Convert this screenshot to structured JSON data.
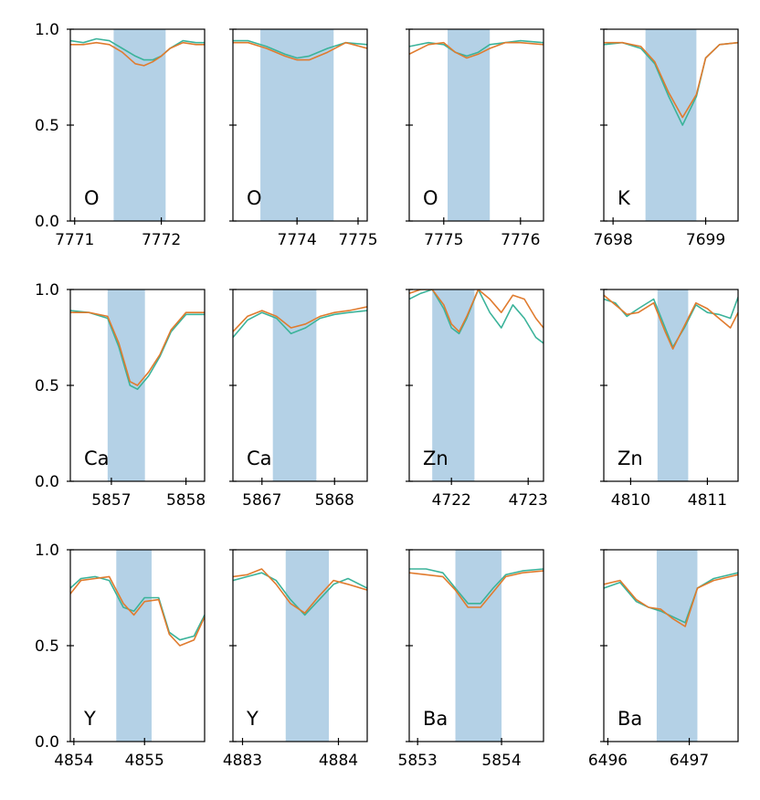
{
  "chart_data": {
    "type": "line",
    "layout": "3x4 grid of spectral line panels",
    "series_colors": [
      "#3bb39a",
      "#e07b2e"
    ],
    "band_color": "#b4d1e6",
    "ylim": [
      0,
      1
    ],
    "yticks": [
      "0.0",
      "0.5",
      "1.0"
    ],
    "panels": [
      {
        "element": "O",
        "xlim": [
          7770.95,
          7772.5
        ],
        "xticks": [
          7771,
          7772
        ],
        "band": [
          7771.45,
          7772.05
        ],
        "series": [
          {
            "x": [
              7770.95,
              7771.1,
              7771.25,
              7771.4,
              7771.55,
              7771.7,
              7771.8,
              7771.9,
              7772.0,
              7772.1,
              7772.25,
              7772.4,
              7772.5
            ],
            "values": [
              0.94,
              0.93,
              0.95,
              0.94,
              0.9,
              0.86,
              0.84,
              0.84,
              0.86,
              0.9,
              0.94,
              0.93,
              0.93
            ]
          },
          {
            "x": [
              7770.95,
              7771.1,
              7771.25,
              7771.4,
              7771.55,
              7771.7,
              7771.8,
              7771.9,
              7772.0,
              7772.1,
              7772.25,
              7772.4,
              7772.5
            ],
            "values": [
              0.92,
              0.92,
              0.93,
              0.92,
              0.88,
              0.82,
              0.81,
              0.83,
              0.86,
              0.9,
              0.93,
              0.92,
              0.92
            ]
          }
        ]
      },
      {
        "element": "O",
        "xlim": [
          7772.95,
          7775.15
        ],
        "xticks": [
          7774,
          7775
        ],
        "band": [
          7773.4,
          7774.6
        ],
        "series": [
          {
            "x": [
              7772.95,
              7773.2,
              7773.5,
              7773.8,
              7774.0,
              7774.2,
              7774.5,
              7774.8,
              7775.15
            ],
            "values": [
              0.94,
              0.94,
              0.91,
              0.87,
              0.85,
              0.86,
              0.9,
              0.93,
              0.92
            ]
          },
          {
            "x": [
              7772.95,
              7773.2,
              7773.5,
              7773.8,
              7774.0,
              7774.2,
              7774.5,
              7774.8,
              7775.15
            ],
            "values": [
              0.93,
              0.93,
              0.9,
              0.86,
              0.84,
              0.84,
              0.88,
              0.93,
              0.9
            ]
          }
        ]
      },
      {
        "element": "O",
        "xlim": [
          7774.55,
          7776.3
        ],
        "xticks": [
          7775,
          7776
        ],
        "band": [
          7775.05,
          7775.6
        ],
        "series": [
          {
            "x": [
              7774.55,
              7774.8,
              7775.0,
              7775.15,
              7775.3,
              7775.45,
              7775.6,
              7775.8,
              7776.0,
              7776.3
            ],
            "values": [
              0.91,
              0.93,
              0.92,
              0.88,
              0.86,
              0.88,
              0.92,
              0.93,
              0.94,
              0.93
            ]
          },
          {
            "x": [
              7774.55,
              7774.8,
              7775.0,
              7775.15,
              7775.3,
              7775.45,
              7775.6,
              7775.8,
              7776.0,
              7776.3
            ],
            "values": [
              0.87,
              0.92,
              0.93,
              0.88,
              0.85,
              0.87,
              0.9,
              0.93,
              0.93,
              0.92
            ]
          }
        ]
      },
      {
        "element": "K",
        "xlim": [
          7697.9,
          7699.35
        ],
        "xticks": [
          7698,
          7699
        ],
        "band": [
          7698.35,
          7698.9
        ],
        "series": [
          {
            "x": [
              7697.9,
              7698.1,
              7698.3,
              7698.45,
              7698.6,
              7698.75,
              7698.9,
              7699.0,
              7699.15,
              7699.35
            ],
            "values": [
              0.92,
              0.93,
              0.9,
              0.82,
              0.65,
              0.5,
              0.65,
              0.85,
              0.92,
              0.93
            ]
          },
          {
            "x": [
              7697.9,
              7698.1,
              7698.3,
              7698.45,
              7698.6,
              7698.75,
              7698.9,
              7699.0,
              7699.15,
              7699.35
            ],
            "values": [
              0.93,
              0.93,
              0.91,
              0.83,
              0.67,
              0.54,
              0.66,
              0.85,
              0.92,
              0.93
            ]
          }
        ]
      },
      {
        "element": "Ca",
        "xlim": [
          5856.45,
          5858.25
        ],
        "xticks": [
          5857,
          5858
        ],
        "band": [
          5856.95,
          5857.45
        ],
        "series": [
          {
            "x": [
              5856.45,
              5856.7,
              5856.95,
              5857.1,
              5857.25,
              5857.35,
              5857.5,
              5857.65,
              5857.8,
              5858.0,
              5858.25
            ],
            "values": [
              0.89,
              0.88,
              0.85,
              0.7,
              0.5,
              0.48,
              0.55,
              0.65,
              0.78,
              0.87,
              0.87
            ]
          },
          {
            "x": [
              5856.45,
              5856.7,
              5856.95,
              5857.1,
              5857.25,
              5857.35,
              5857.5,
              5857.65,
              5857.8,
              5858.0,
              5858.25
            ],
            "values": [
              0.88,
              0.88,
              0.86,
              0.72,
              0.52,
              0.5,
              0.57,
              0.66,
              0.79,
              0.88,
              0.88
            ]
          }
        ]
      },
      {
        "element": "Ca",
        "xlim": [
          5866.6,
          5868.45
        ],
        "xticks": [
          5867,
          5868
        ],
        "band": [
          5867.15,
          5867.75
        ],
        "series": [
          {
            "x": [
              5866.6,
              5866.8,
              5867.0,
              5867.2,
              5867.4,
              5867.6,
              5867.8,
              5868.0,
              5868.2,
              5868.45
            ],
            "values": [
              0.75,
              0.84,
              0.88,
              0.85,
              0.77,
              0.8,
              0.85,
              0.87,
              0.88,
              0.89
            ]
          },
          {
            "x": [
              5866.6,
              5866.8,
              5867.0,
              5867.2,
              5867.4,
              5867.6,
              5867.8,
              5868.0,
              5868.2,
              5868.45
            ],
            "values": [
              0.78,
              0.86,
              0.89,
              0.86,
              0.8,
              0.82,
              0.86,
              0.88,
              0.89,
              0.91
            ]
          }
        ]
      },
      {
        "element": "Zn",
        "xlim": [
          4721.45,
          4723.2
        ],
        "xticks": [
          4722,
          4723
        ],
        "band": [
          4721.75,
          4722.3
        ],
        "series": [
          {
            "x": [
              4721.45,
              4721.6,
              4721.75,
              4721.9,
              4722.0,
              4722.1,
              4722.2,
              4722.35,
              4722.5,
              4722.65,
              4722.8,
              4722.95,
              4723.1,
              4723.2
            ],
            "values": [
              0.95,
              0.98,
              1.0,
              0.9,
              0.8,
              0.77,
              0.85,
              1.0,
              0.88,
              0.8,
              0.92,
              0.85,
              0.75,
              0.72
            ]
          },
          {
            "x": [
              4721.45,
              4721.6,
              4721.75,
              4721.9,
              4722.0,
              4722.1,
              4722.2,
              4722.35,
              4722.5,
              4722.65,
              4722.8,
              4722.95,
              4723.1,
              4723.2
            ],
            "values": [
              0.98,
              1.0,
              1.0,
              0.92,
              0.82,
              0.78,
              0.86,
              1.0,
              0.95,
              0.88,
              0.97,
              0.95,
              0.85,
              0.8
            ]
          }
        ]
      },
      {
        "element": "Zn",
        "xlim": [
          4809.65,
          4811.4
        ],
        "xticks": [
          4810,
          4811
        ],
        "band": [
          4810.35,
          4810.75
        ],
        "series": [
          {
            "x": [
              4809.65,
              4809.8,
              4809.95,
              4810.1,
              4810.3,
              4810.45,
              4810.55,
              4810.7,
              4810.85,
              4811.0,
              4811.15,
              4811.3,
              4811.4
            ],
            "values": [
              0.95,
              0.93,
              0.86,
              0.9,
              0.95,
              0.8,
              0.7,
              0.8,
              0.92,
              0.88,
              0.87,
              0.85,
              0.96
            ]
          },
          {
            "x": [
              4809.65,
              4809.8,
              4809.95,
              4810.1,
              4810.3,
              4810.45,
              4810.55,
              4810.7,
              4810.85,
              4811.0,
              4811.15,
              4811.3,
              4811.4
            ],
            "values": [
              0.97,
              0.92,
              0.87,
              0.88,
              0.93,
              0.78,
              0.69,
              0.81,
              0.93,
              0.9,
              0.85,
              0.8,
              0.88
            ]
          }
        ]
      },
      {
        "element": "Y",
        "xlim": [
          4853.95,
          4855.85
        ],
        "xticks": [
          4854,
          4855
        ],
        "band": [
          4854.6,
          4855.1
        ],
        "series": [
          {
            "x": [
              4853.95,
              4854.1,
              4854.3,
              4854.5,
              4854.7,
              4854.85,
              4855.0,
              4855.2,
              4855.35,
              4855.5,
              4855.7,
              4855.85
            ],
            "values": [
              0.8,
              0.85,
              0.86,
              0.84,
              0.7,
              0.68,
              0.75,
              0.75,
              0.57,
              0.53,
              0.55,
              0.66
            ]
          },
          {
            "x": [
              4853.95,
              4854.1,
              4854.3,
              4854.5,
              4854.7,
              4854.85,
              4855.0,
              4855.2,
              4855.35,
              4855.5,
              4855.7,
              4855.85
            ],
            "values": [
              0.77,
              0.84,
              0.85,
              0.86,
              0.72,
              0.66,
              0.73,
              0.74,
              0.56,
              0.5,
              0.53,
              0.65
            ]
          }
        ]
      },
      {
        "element": "Y",
        "xlim": [
          4882.9,
          4884.3
        ],
        "xticks": [
          4883,
          4884
        ],
        "band": [
          4883.45,
          4883.9
        ],
        "series": [
          {
            "x": [
              4882.9,
              4883.05,
              4883.2,
              4883.35,
              4883.5,
              4883.65,
              4883.8,
              4883.95,
              4884.1,
              4884.3
            ],
            "values": [
              0.84,
              0.86,
              0.88,
              0.84,
              0.74,
              0.66,
              0.74,
              0.82,
              0.85,
              0.8
            ]
          },
          {
            "x": [
              4882.9,
              4883.05,
              4883.2,
              4883.35,
              4883.5,
              4883.65,
              4883.8,
              4883.95,
              4884.1,
              4884.3
            ],
            "values": [
              0.86,
              0.87,
              0.9,
              0.82,
              0.72,
              0.67,
              0.76,
              0.84,
              0.82,
              0.79
            ]
          }
        ]
      },
      {
        "element": "Ba",
        "xlim": [
          5852.9,
          5854.5
        ],
        "xticks": [
          5853,
          5854
        ],
        "band": [
          5853.45,
          5854.0
        ],
        "series": [
          {
            "x": [
              5852.9,
              5853.1,
              5853.3,
              5853.45,
              5853.6,
              5853.75,
              5853.9,
              5854.05,
              5854.25,
              5854.5
            ],
            "values": [
              0.9,
              0.9,
              0.88,
              0.8,
              0.72,
              0.72,
              0.8,
              0.87,
              0.89,
              0.9
            ]
          },
          {
            "x": [
              5852.9,
              5853.1,
              5853.3,
              5853.45,
              5853.6,
              5853.75,
              5853.9,
              5854.05,
              5854.25,
              5854.5
            ],
            "values": [
              0.88,
              0.87,
              0.86,
              0.79,
              0.7,
              0.7,
              0.78,
              0.86,
              0.88,
              0.89
            ]
          }
        ]
      },
      {
        "element": "Ba",
        "xlim": [
          6495.95,
          6497.6
        ],
        "xticks": [
          6496,
          6497
        ],
        "band": [
          6496.6,
          6497.1
        ],
        "series": [
          {
            "x": [
              6495.95,
              6496.15,
              6496.35,
              6496.5,
              6496.65,
              6496.8,
              6496.95,
              6497.1,
              6497.3,
              6497.6
            ],
            "values": [
              0.8,
              0.83,
              0.73,
              0.7,
              0.68,
              0.65,
              0.62,
              0.8,
              0.85,
              0.88
            ]
          },
          {
            "x": [
              6495.95,
              6496.15,
              6496.35,
              6496.5,
              6496.65,
              6496.8,
              6496.95,
              6497.1,
              6497.3,
              6497.6
            ],
            "values": [
              0.82,
              0.84,
              0.74,
              0.7,
              0.69,
              0.64,
              0.6,
              0.8,
              0.84,
              0.87
            ]
          }
        ]
      }
    ]
  }
}
